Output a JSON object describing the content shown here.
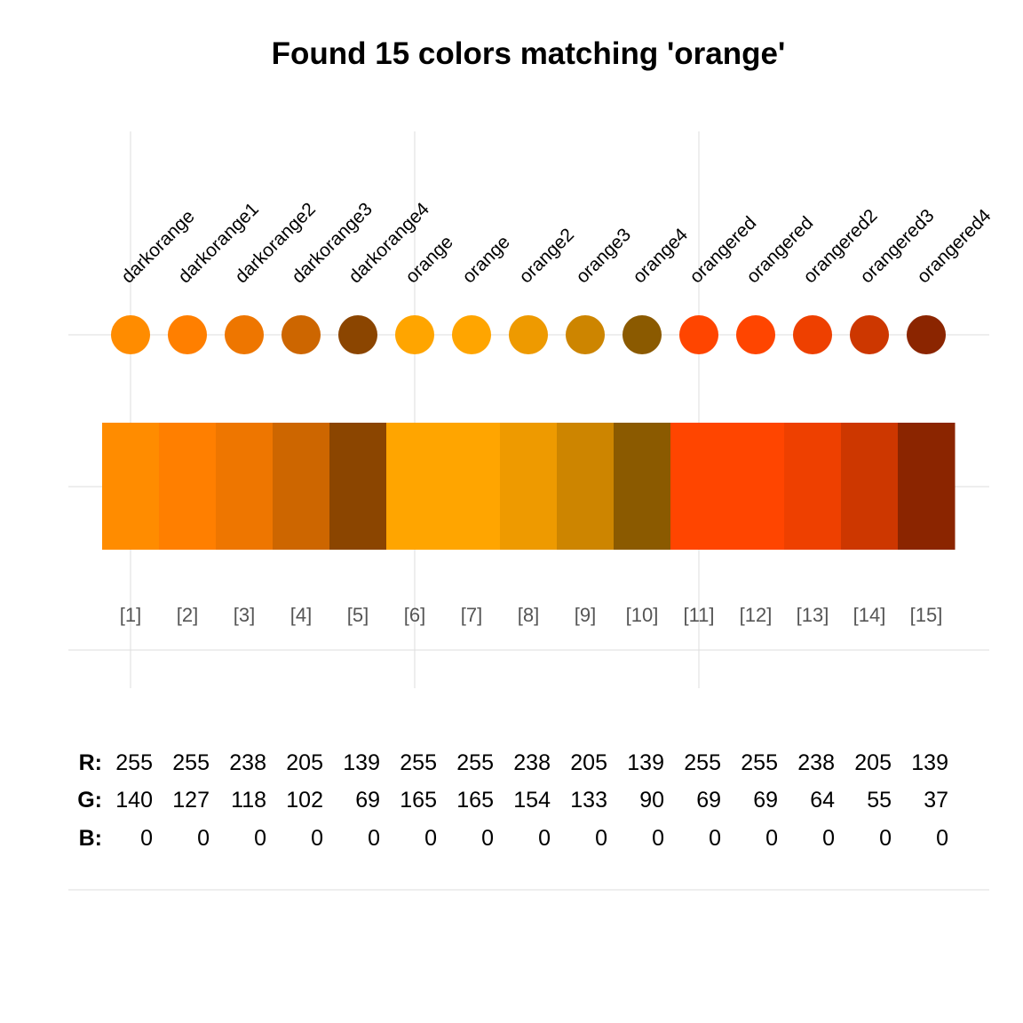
{
  "chart_data": {
    "type": "table",
    "title": "Found 15 colors matching 'orange'",
    "grid": true,
    "colors": [
      {
        "name": "darkorange",
        "index": "[1]",
        "hex": "#FF8C00",
        "r": 255,
        "g": 140,
        "b": 0
      },
      {
        "name": "darkorange1",
        "index": "[2]",
        "hex": "#FF7F00",
        "r": 255,
        "g": 127,
        "b": 0
      },
      {
        "name": "darkorange2",
        "index": "[3]",
        "hex": "#EE7600",
        "r": 238,
        "g": 118,
        "b": 0
      },
      {
        "name": "darkorange3",
        "index": "[4]",
        "hex": "#CD6600",
        "r": 205,
        "g": 102,
        "b": 0
      },
      {
        "name": "darkorange4",
        "index": "[5]",
        "hex": "#8B4500",
        "r": 139,
        "g": 69,
        "b": 0
      },
      {
        "name": "orange",
        "index": "[6]",
        "hex": "#FFA500",
        "r": 255,
        "g": 165,
        "b": 0
      },
      {
        "name": "orange",
        "index": "[7]",
        "hex": "#FFA500",
        "r": 255,
        "g": 165,
        "b": 0
      },
      {
        "name": "orange2",
        "index": "[8]",
        "hex": "#EE9A00",
        "r": 238,
        "g": 154,
        "b": 0
      },
      {
        "name": "orange3",
        "index": "[9]",
        "hex": "#CD8500",
        "r": 205,
        "g": 133,
        "b": 0
      },
      {
        "name": "orange4",
        "index": "[10]",
        "hex": "#8B5A00",
        "r": 139,
        "g": 90,
        "b": 0
      },
      {
        "name": "orangered",
        "index": "[11]",
        "hex": "#FF4500",
        "r": 255,
        "g": 69,
        "b": 0
      },
      {
        "name": "orangered",
        "index": "[12]",
        "hex": "#FF4500",
        "r": 255,
        "g": 69,
        "b": 0
      },
      {
        "name": "orangered2",
        "index": "[13]",
        "hex": "#EE4000",
        "r": 238,
        "g": 64,
        "b": 0
      },
      {
        "name": "orangered3",
        "index": "[14]",
        "hex": "#CD3700",
        "r": 205,
        "g": 55,
        "b": 0
      },
      {
        "name": "orangered4",
        "index": "[15]",
        "hex": "#8B2500",
        "r": 139,
        "g": 37,
        "b": 0
      }
    ],
    "rgb_labels": {
      "r": "R:",
      "g": "G:",
      "b": "B:"
    }
  }
}
